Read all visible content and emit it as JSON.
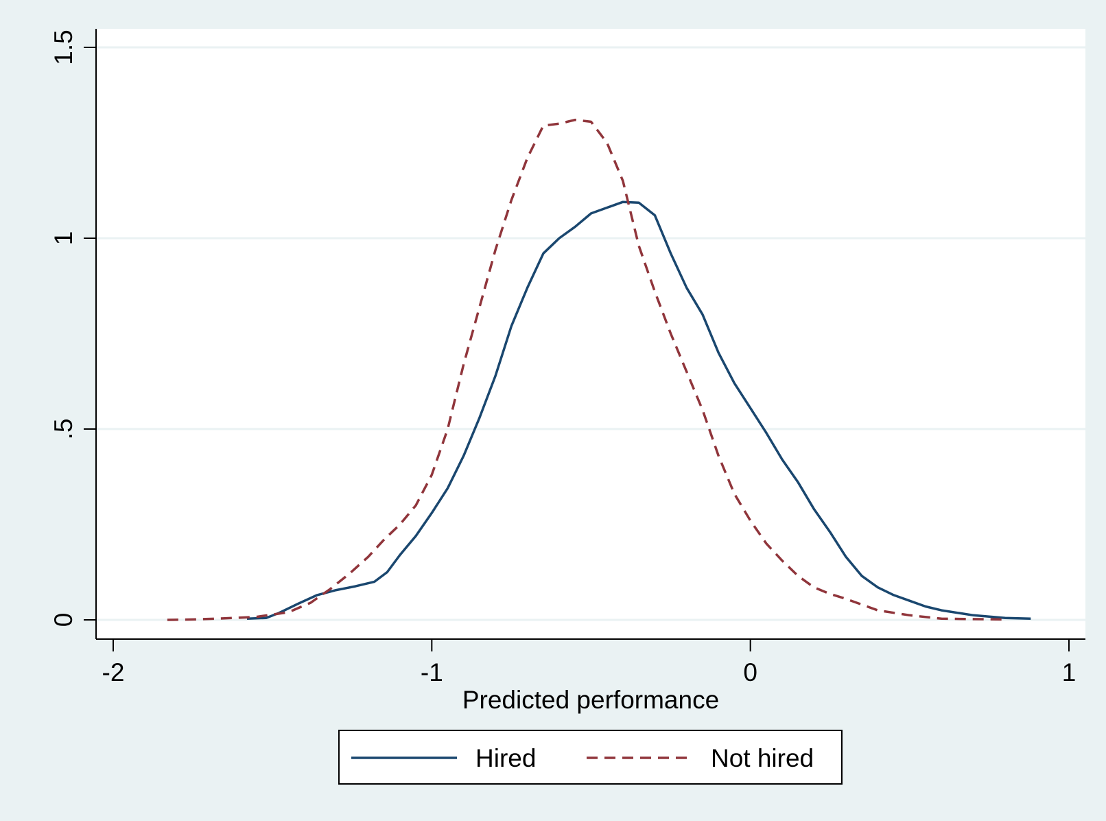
{
  "colors": {
    "background": "#eaf2f3",
    "plot_background": "#ffffff",
    "gridline": "#eaf2f3",
    "axis": "#000000",
    "hired": "#1a476f",
    "not_hired": "#90353b"
  },
  "chart_data": {
    "type": "line",
    "title": "",
    "xlabel": "Predicted performance",
    "ylabel": "",
    "xlim": [
      -2.05,
      1.05
    ],
    "ylim": [
      -0.05,
      1.55
    ],
    "x_ticks": [
      {
        "value": -2,
        "label": "-2"
      },
      {
        "value": -1,
        "label": "-1"
      },
      {
        "value": 0,
        "label": "0"
      },
      {
        "value": 1,
        "label": "1"
      }
    ],
    "y_ticks": [
      {
        "value": 0,
        "label": "0"
      },
      {
        "value": 0.5,
        "label": ".5"
      },
      {
        "value": 1,
        "label": "1"
      },
      {
        "value": 1.5,
        "label": "1.5"
      }
    ],
    "grid": "horizontal",
    "legend_position": "bottom",
    "series": [
      {
        "name": "Hired",
        "style": "solid",
        "color": "#1a476f",
        "points": [
          [
            -1.58,
            0.003
          ],
          [
            -1.52,
            0.005
          ],
          [
            -1.48,
            0.018
          ],
          [
            -1.42,
            0.042
          ],
          [
            -1.36,
            0.065
          ],
          [
            -1.3,
            0.078
          ],
          [
            -1.24,
            0.088
          ],
          [
            -1.18,
            0.1
          ],
          [
            -1.14,
            0.125
          ],
          [
            -1.1,
            0.17
          ],
          [
            -1.05,
            0.22
          ],
          [
            -1.0,
            0.28
          ],
          [
            -0.95,
            0.345
          ],
          [
            -0.9,
            0.43
          ],
          [
            -0.85,
            0.53
          ],
          [
            -0.8,
            0.64
          ],
          [
            -0.75,
            0.77
          ],
          [
            -0.7,
            0.87
          ],
          [
            -0.65,
            0.96
          ],
          [
            -0.6,
            1.0
          ],
          [
            -0.55,
            1.03
          ],
          [
            -0.5,
            1.065
          ],
          [
            -0.45,
            1.08
          ],
          [
            -0.4,
            1.095
          ],
          [
            -0.35,
            1.093
          ],
          [
            -0.3,
            1.06
          ],
          [
            -0.25,
            0.96
          ],
          [
            -0.2,
            0.87
          ],
          [
            -0.15,
            0.8
          ],
          [
            -0.1,
            0.7
          ],
          [
            -0.05,
            0.62
          ],
          [
            0.0,
            0.555
          ],
          [
            0.05,
            0.49
          ],
          [
            0.1,
            0.42
          ],
          [
            0.15,
            0.36
          ],
          [
            0.2,
            0.29
          ],
          [
            0.25,
            0.23
          ],
          [
            0.3,
            0.165
          ],
          [
            0.35,
            0.115
          ],
          [
            0.4,
            0.085
          ],
          [
            0.45,
            0.065
          ],
          [
            0.5,
            0.05
          ],
          [
            0.55,
            0.035
          ],
          [
            0.6,
            0.025
          ],
          [
            0.7,
            0.012
          ],
          [
            0.8,
            0.005
          ],
          [
            0.88,
            0.003
          ]
        ]
      },
      {
        "name": "Not hired",
        "style": "dashed",
        "color": "#90353b",
        "points": [
          [
            -1.83,
            0.0
          ],
          [
            -1.75,
            0.001
          ],
          [
            -1.65,
            0.004
          ],
          [
            -1.55,
            0.008
          ],
          [
            -1.45,
            0.02
          ],
          [
            -1.38,
            0.045
          ],
          [
            -1.32,
            0.08
          ],
          [
            -1.26,
            0.12
          ],
          [
            -1.2,
            0.165
          ],
          [
            -1.15,
            0.21
          ],
          [
            -1.1,
            0.25
          ],
          [
            -1.05,
            0.3
          ],
          [
            -1.0,
            0.38
          ],
          [
            -0.95,
            0.5
          ],
          [
            -0.9,
            0.67
          ],
          [
            -0.85,
            0.82
          ],
          [
            -0.8,
            0.97
          ],
          [
            -0.75,
            1.1
          ],
          [
            -0.7,
            1.21
          ],
          [
            -0.65,
            1.295
          ],
          [
            -0.6,
            1.3
          ],
          [
            -0.55,
            1.31
          ],
          [
            -0.5,
            1.305
          ],
          [
            -0.45,
            1.25
          ],
          [
            -0.4,
            1.15
          ],
          [
            -0.35,
            0.98
          ],
          [
            -0.3,
            0.86
          ],
          [
            -0.25,
            0.75
          ],
          [
            -0.2,
            0.65
          ],
          [
            -0.15,
            0.55
          ],
          [
            -0.1,
            0.43
          ],
          [
            -0.05,
            0.33
          ],
          [
            0.0,
            0.26
          ],
          [
            0.05,
            0.2
          ],
          [
            0.1,
            0.155
          ],
          [
            0.15,
            0.115
          ],
          [
            0.2,
            0.085
          ],
          [
            0.25,
            0.068
          ],
          [
            0.3,
            0.055
          ],
          [
            0.35,
            0.04
          ],
          [
            0.4,
            0.025
          ],
          [
            0.5,
            0.012
          ],
          [
            0.6,
            0.003
          ],
          [
            0.7,
            0.002
          ],
          [
            0.8,
            0.001
          ]
        ]
      }
    ]
  }
}
